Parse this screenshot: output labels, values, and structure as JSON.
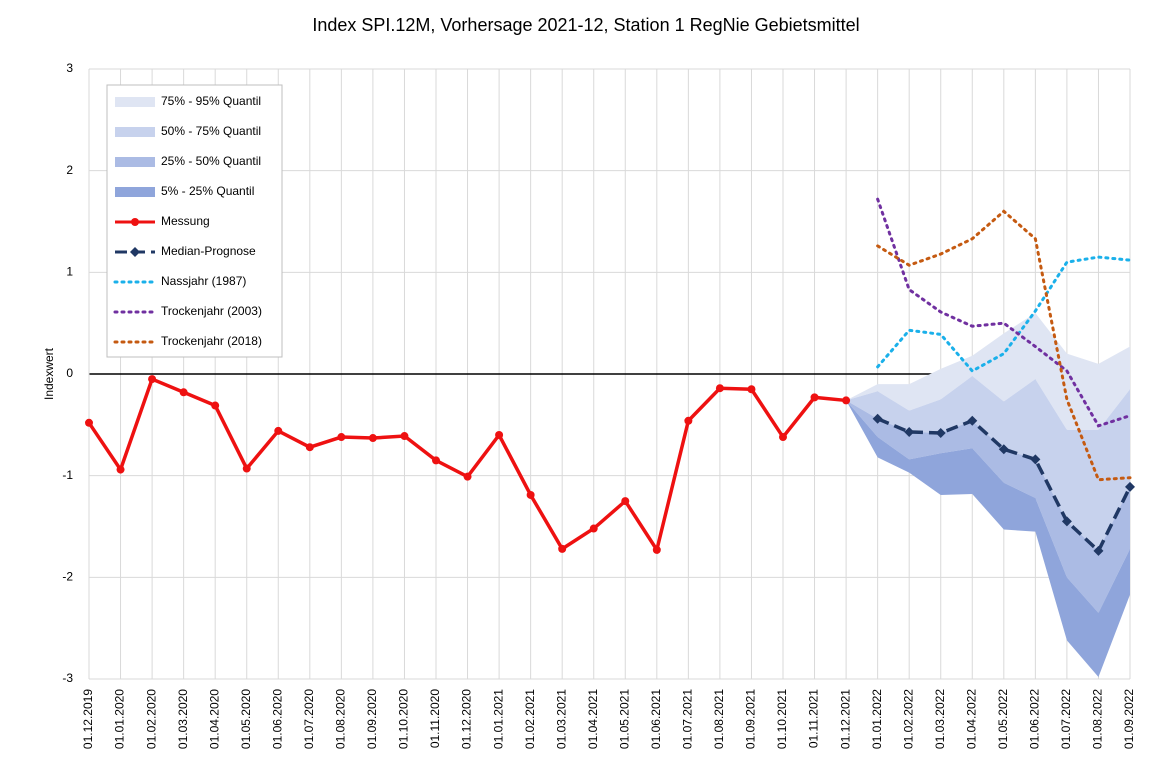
{
  "chart_data": {
    "type": "line",
    "title": "Index SPI.12M, Vorhersage 2021-12, Station 1 RegNie Gebietsmittel",
    "y_label": "Indexwert",
    "categories": [
      "01.12.2019",
      "01.01.2020",
      "01.02.2020",
      "01.03.2020",
      "01.04.2020",
      "01.05.2020",
      "01.06.2020",
      "01.07.2020",
      "01.08.2020",
      "01.09.2020",
      "01.10.2020",
      "01.11.2020",
      "01.12.2020",
      "01.01.2021",
      "01.02.2021",
      "01.03.2021",
      "01.04.2021",
      "01.05.2021",
      "01.06.2021",
      "01.07.2021",
      "01.08.2021",
      "01.09.2021",
      "01.10.2021",
      "01.11.2021",
      "01.12.2021",
      "01.01.2022",
      "01.02.2022",
      "01.03.2022",
      "01.04.2022",
      "01.05.2022",
      "01.06.2022",
      "01.07.2022",
      "01.08.2022",
      "01.09.2022"
    ],
    "ylim": [
      -3,
      3
    ],
    "yticks": [
      -3,
      -2,
      -1,
      0,
      1,
      2,
      3
    ],
    "grid": true,
    "bands": [
      {
        "name": "75% - 95% Quantil",
        "color": "#dfe5f3",
        "lower": [
          null,
          null,
          null,
          null,
          null,
          null,
          null,
          null,
          null,
          null,
          null,
          null,
          null,
          null,
          null,
          null,
          null,
          null,
          null,
          null,
          null,
          null,
          null,
          null,
          -0.26,
          -0.17,
          -0.36,
          -0.25,
          -0.02,
          -0.27,
          -0.05,
          -0.55,
          -0.55,
          -0.15
        ],
        "upper": [
          null,
          null,
          null,
          null,
          null,
          null,
          null,
          null,
          null,
          null,
          null,
          null,
          null,
          null,
          null,
          null,
          null,
          null,
          null,
          null,
          null,
          null,
          null,
          null,
          -0.26,
          -0.1,
          -0.1,
          0.05,
          0.18,
          0.4,
          0.6,
          0.2,
          0.1,
          0.27
        ]
      },
      {
        "name": "50% - 75% Quantil",
        "color": "#c7d2ed",
        "lower": [
          null,
          null,
          null,
          null,
          null,
          null,
          null,
          null,
          null,
          null,
          null,
          null,
          null,
          null,
          null,
          null,
          null,
          null,
          null,
          null,
          null,
          null,
          null,
          null,
          -0.26,
          -0.44,
          -0.57,
          -0.58,
          -0.46,
          -0.74,
          -0.84,
          -1.45,
          -1.74,
          -1.11
        ],
        "upper": [
          null,
          null,
          null,
          null,
          null,
          null,
          null,
          null,
          null,
          null,
          null,
          null,
          null,
          null,
          null,
          null,
          null,
          null,
          null,
          null,
          null,
          null,
          null,
          null,
          -0.26,
          -0.17,
          -0.36,
          -0.25,
          -0.02,
          -0.27,
          -0.05,
          -0.55,
          -0.55,
          -0.15
        ]
      },
      {
        "name": "25% - 50% Quantil",
        "color": "#abbbe4",
        "lower": [
          null,
          null,
          null,
          null,
          null,
          null,
          null,
          null,
          null,
          null,
          null,
          null,
          null,
          null,
          null,
          null,
          null,
          null,
          null,
          null,
          null,
          null,
          null,
          null,
          -0.26,
          -0.62,
          -0.84,
          -0.78,
          -0.73,
          -1.07,
          -1.22,
          -2.0,
          -2.35,
          -1.72
        ],
        "upper": [
          null,
          null,
          null,
          null,
          null,
          null,
          null,
          null,
          null,
          null,
          null,
          null,
          null,
          null,
          null,
          null,
          null,
          null,
          null,
          null,
          null,
          null,
          null,
          null,
          -0.26,
          -0.44,
          -0.57,
          -0.58,
          -0.46,
          -0.74,
          -0.84,
          -1.45,
          -1.74,
          -1.11
        ]
      },
      {
        "name": "5% - 25% Quantil",
        "color": "#8fa5db",
        "lower": [
          null,
          null,
          null,
          null,
          null,
          null,
          null,
          null,
          null,
          null,
          null,
          null,
          null,
          null,
          null,
          null,
          null,
          null,
          null,
          null,
          null,
          null,
          null,
          null,
          -0.26,
          -0.82,
          -0.97,
          -1.19,
          -1.18,
          -1.53,
          -1.55,
          -2.62,
          -2.98,
          -2.17
        ],
        "upper": [
          null,
          null,
          null,
          null,
          null,
          null,
          null,
          null,
          null,
          null,
          null,
          null,
          null,
          null,
          null,
          null,
          null,
          null,
          null,
          null,
          null,
          null,
          null,
          null,
          -0.26,
          -0.62,
          -0.84,
          -0.78,
          -0.73,
          -1.07,
          -1.22,
          -2.0,
          -2.35,
          -1.72
        ]
      }
    ],
    "series": [
      {
        "name": "Messung",
        "color": "#ee1111",
        "style": "solid",
        "marker": "circle",
        "values": [
          -0.48,
          -0.94,
          -0.05,
          -0.18,
          -0.31,
          -0.93,
          -0.56,
          -0.72,
          -0.62,
          -0.63,
          -0.61,
          -0.85,
          -1.01,
          -0.6,
          -1.19,
          -1.72,
          -1.52,
          -1.25,
          -1.73,
          -0.46,
          -0.14,
          -0.15,
          -0.62,
          -0.23,
          -0.26,
          null,
          null,
          null,
          null,
          null,
          null,
          null,
          null,
          null
        ]
      },
      {
        "name": "Median-Prognose",
        "color": "#203864",
        "style": "dashed",
        "marker": "diamond",
        "values": [
          null,
          null,
          null,
          null,
          null,
          null,
          null,
          null,
          null,
          null,
          null,
          null,
          null,
          null,
          null,
          null,
          null,
          null,
          null,
          null,
          null,
          null,
          null,
          null,
          null,
          -0.44,
          -0.57,
          -0.58,
          -0.46,
          -0.74,
          -0.84,
          -1.45,
          -1.74,
          -1.11
        ]
      },
      {
        "name": "Nassjahr (1987)",
        "color": "#1ab0ea",
        "style": "dotted",
        "marker": "none",
        "values": [
          null,
          null,
          null,
          null,
          null,
          null,
          null,
          null,
          null,
          null,
          null,
          null,
          null,
          null,
          null,
          null,
          null,
          null,
          null,
          null,
          null,
          null,
          null,
          null,
          null,
          0.07,
          0.43,
          0.39,
          0.03,
          0.2,
          0.62,
          1.1,
          1.15,
          1.12
        ]
      },
      {
        "name": "Trockenjahr (2003)",
        "color": "#7030a0",
        "style": "dotted",
        "marker": "none",
        "values": [
          null,
          null,
          null,
          null,
          null,
          null,
          null,
          null,
          null,
          null,
          null,
          null,
          null,
          null,
          null,
          null,
          null,
          null,
          null,
          null,
          null,
          null,
          null,
          null,
          null,
          1.72,
          0.83,
          0.61,
          0.47,
          0.5,
          0.27,
          0.03,
          -0.51,
          -0.41
        ]
      },
      {
        "name": "Trockenjahr (2018)",
        "color": "#c55a11",
        "style": "dotted",
        "marker": "none",
        "values": [
          null,
          null,
          null,
          null,
          null,
          null,
          null,
          null,
          null,
          null,
          null,
          null,
          null,
          null,
          null,
          null,
          null,
          null,
          null,
          null,
          null,
          null,
          null,
          null,
          null,
          1.26,
          1.07,
          1.18,
          1.33,
          1.6,
          1.33,
          -0.25,
          -1.04,
          -1.02
        ]
      }
    ]
  }
}
